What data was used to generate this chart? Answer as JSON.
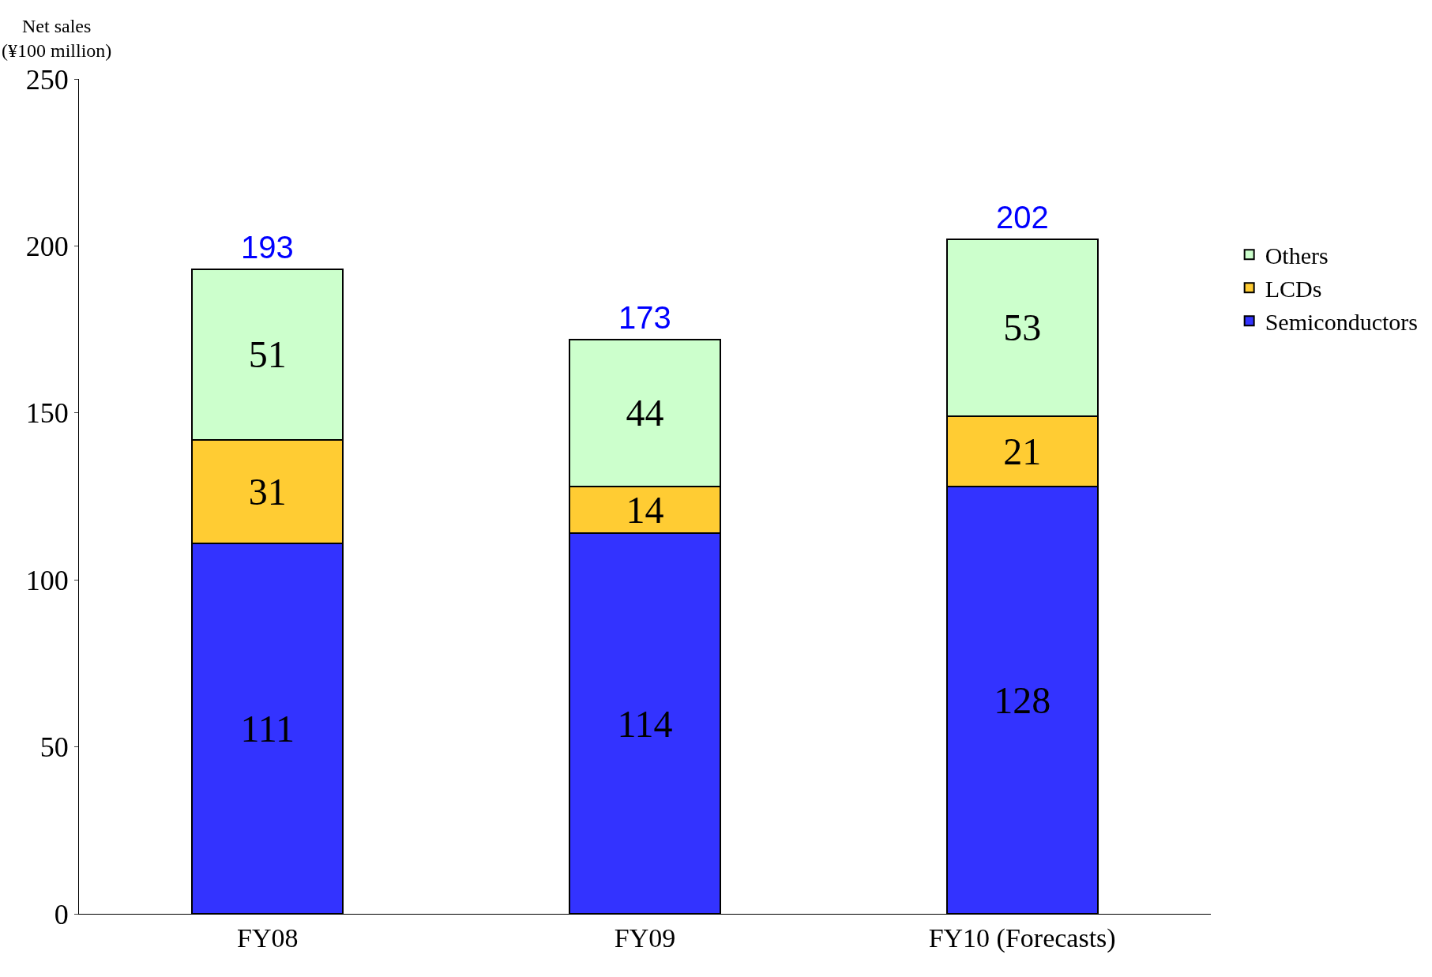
{
  "chart_data": {
    "type": "bar",
    "stacked": true,
    "ylabel": "Net sales\n(¥100 million)",
    "categories": [
      "FY08",
      "FY09",
      "FY10 (Forecasts)"
    ],
    "series": [
      {
        "name": "Semiconductors",
        "color": "#3333ff",
        "values": [
          111,
          114,
          128
        ]
      },
      {
        "name": "LCDs",
        "color": "#ffcc33",
        "values": [
          31,
          14,
          21
        ]
      },
      {
        "name": "Others",
        "color": "#ccffcc",
        "values": [
          51,
          44,
          53
        ]
      }
    ],
    "totals": [
      "193",
      "173",
      "202"
    ],
    "data_labels": true,
    "ylim": [
      0,
      250
    ],
    "yticks": [
      0,
      50,
      100,
      150,
      200,
      250
    ],
    "legend": "right"
  }
}
